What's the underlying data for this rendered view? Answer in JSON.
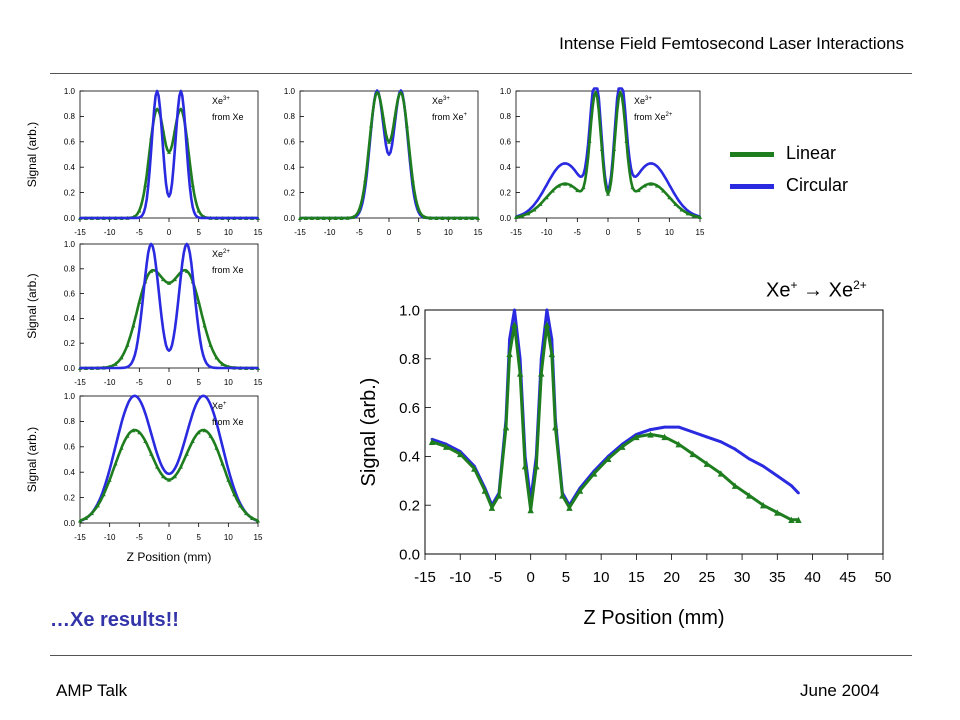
{
  "header": {
    "title": "Intense Field Femtosecond Laser Interactions"
  },
  "footer": {
    "left": "AMP Talk",
    "right": "June 2004"
  },
  "results_text": "…Xe results!!",
  "legend": [
    {
      "label": "Linear",
      "color": "#1e7d1e"
    },
    {
      "label": "Circular",
      "color": "#2a2ae0"
    }
  ],
  "big_title": {
    "a": "Xe",
    "a_sup": "+",
    "arrow": " → Xe",
    "b_sup": "2+"
  },
  "chart_data": [
    {
      "id": "xe3-from-xe",
      "type": "line",
      "label_top": "Xe",
      "label_sup": "3+",
      "label_bottom": "from Xe",
      "ylabel": "Signal (arb.)",
      "xlabel": "",
      "xlim": [
        -15,
        15
      ],
      "ylim": [
        0,
        1.0
      ],
      "xticks": [
        -15,
        -10,
        -5,
        0,
        5,
        10,
        15
      ],
      "yticks": [
        0.0,
        0.2,
        0.4,
        0.6,
        0.8,
        1.0
      ],
      "series": [
        {
          "color": "#1e7d1e",
          "peaks": [
            [
              -2,
              0.85,
              1.3
            ],
            [
              2,
              0.85,
              1.3
            ]
          ],
          "base": 0.0
        },
        {
          "color": "#2a2ae0",
          "peaks": [
            [
              -2,
              1.0,
              0.9
            ],
            [
              2,
              1.0,
              0.9
            ]
          ],
          "base": 0.0
        }
      ]
    },
    {
      "id": "xe3-from-xe1",
      "type": "line",
      "label_top": "Xe",
      "label_sup": "3+",
      "label_bottom": "from Xe",
      "label_bottom_sup": "+",
      "ylabel": "",
      "xlabel": "",
      "xlim": [
        -15,
        15
      ],
      "ylim": [
        0,
        1.0
      ],
      "xticks": [
        -15,
        -10,
        -5,
        0,
        5,
        10,
        15
      ],
      "yticks": [
        0.0,
        0.2,
        0.4,
        0.6,
        0.8,
        1.0
      ],
      "series": [
        {
          "color": "#2a2ae0",
          "peaks": [
            [
              -2,
              1.0,
              1.2
            ],
            [
              2,
              1.0,
              1.2
            ]
          ],
          "base": 0.0
        },
        {
          "color": "#1e7d1e",
          "peaks": [
            [
              -2,
              0.98,
              1.3
            ],
            [
              2,
              0.98,
              1.3
            ]
          ],
          "base": 0.0
        }
      ]
    },
    {
      "id": "xe3-from-xe2",
      "type": "line",
      "label_top": "Xe",
      "label_sup": "3+",
      "label_bottom": "from Xe",
      "label_bottom_sup": "2+",
      "ylabel": "",
      "xlabel": "",
      "xlim": [
        -15,
        15
      ],
      "ylim": [
        0,
        1.0
      ],
      "xticks": [
        -15,
        -10,
        -5,
        0,
        5,
        10,
        15
      ],
      "yticks": [
        0.0,
        0.2,
        0.4,
        0.6,
        0.8,
        1.0
      ],
      "series": [
        {
          "color": "#2a2ae0",
          "peaks": [
            [
              -2,
              1.0,
              0.9
            ],
            [
              2,
              1.0,
              0.9
            ],
            [
              -7,
              0.43,
              3.0
            ],
            [
              7,
              0.43,
              3.0
            ]
          ],
          "base": 0.0
        },
        {
          "color": "#1e7d1e",
          "peaks": [
            [
              -2,
              0.92,
              0.9
            ],
            [
              2,
              0.92,
              0.9
            ],
            [
              -7,
              0.27,
              3.0
            ],
            [
              7,
              0.27,
              3.0
            ]
          ],
          "base": 0.0
        }
      ]
    },
    {
      "id": "xe2-from-xe",
      "type": "line",
      "label_top": "Xe",
      "label_sup": "2+",
      "label_bottom": "from Xe",
      "ylabel": "Signal (arb.)",
      "xlabel": "",
      "xlim": [
        -15,
        15
      ],
      "ylim": [
        0,
        1.0
      ],
      "xticks": [
        -15,
        -10,
        -5,
        0,
        5,
        10,
        15
      ],
      "yticks": [
        0.0,
        0.2,
        0.4,
        0.6,
        0.8,
        1.0
      ],
      "series": [
        {
          "color": "#1e7d1e",
          "peaks": [
            [
              -3,
              0.75,
              2.4
            ],
            [
              3,
              0.75,
              2.4
            ]
          ],
          "base": 0.0
        },
        {
          "color": "#2a2ae0",
          "peaks": [
            [
              -3,
              1.0,
              1.3
            ],
            [
              3,
              1.0,
              1.3
            ]
          ],
          "base": 0.0
        }
      ]
    },
    {
      "id": "xe1-from-xe",
      "type": "line",
      "label_top": "Xe",
      "label_sup": "+",
      "label_bottom": "from Xe",
      "ylabel": "Signal (arb.)",
      "xlabel": "Z Position (mm)",
      "xlim": [
        -15,
        15
      ],
      "ylim": [
        0,
        1.0
      ],
      "xticks": [
        -15,
        -10,
        -5,
        0,
        5,
        10,
        15
      ],
      "yticks": [
        0.0,
        0.2,
        0.4,
        0.6,
        0.8,
        1.0
      ],
      "series": [
        {
          "color": "#2a2ae0",
          "peaks": [
            [
              -5.8,
              1.0,
              3.2
            ],
            [
              5.8,
              1.0,
              3.2
            ]
          ],
          "base": 0.0
        },
        {
          "color": "#1e7d1e",
          "peaks": [
            [
              -5.8,
              0.73,
              3.4
            ],
            [
              5.8,
              0.73,
              3.4
            ]
          ],
          "base": 0.0
        }
      ]
    },
    {
      "id": "xe1-to-xe2-large",
      "type": "line",
      "ylabel": "Signal (arb.)",
      "xlabel": "Z Position (mm)",
      "xlim": [
        -15,
        50
      ],
      "ylim": [
        0,
        1.0
      ],
      "xticks": [
        -15,
        -10,
        -5,
        0,
        5,
        10,
        15,
        20,
        25,
        30,
        35,
        40,
        45,
        50
      ],
      "yticks": [
        0.0,
        0.2,
        0.4,
        0.6,
        0.8,
        1.0
      ],
      "series": [
        {
          "color": "#2a2ae0",
          "x": [
            -14,
            -12,
            -10,
            -8,
            -6.5,
            -5.5,
            -4.5,
            -3.5,
            -3,
            -2.3,
            -1.5,
            -0.8,
            0,
            0.8,
            1.5,
            2.3,
            3,
            3.5,
            4.5,
            5.5,
            7,
            9,
            11,
            13,
            15,
            17,
            19,
            21,
            23,
            25,
            27,
            29,
            31,
            33,
            35,
            37,
            38
          ],
          "y": [
            0.47,
            0.45,
            0.42,
            0.36,
            0.27,
            0.2,
            0.25,
            0.55,
            0.88,
            1.0,
            0.8,
            0.4,
            0.22,
            0.4,
            0.8,
            1.0,
            0.88,
            0.55,
            0.25,
            0.2,
            0.27,
            0.34,
            0.4,
            0.45,
            0.49,
            0.51,
            0.52,
            0.52,
            0.5,
            0.48,
            0.46,
            0.43,
            0.39,
            0.36,
            0.32,
            0.28,
            0.25
          ]
        },
        {
          "color": "#1e7d1e",
          "x": [
            -14,
            -12,
            -10,
            -8,
            -6.5,
            -5.5,
            -4.5,
            -3.5,
            -3,
            -2.3,
            -1.5,
            -0.8,
            0,
            0.8,
            1.5,
            2.3,
            3,
            3.5,
            4.5,
            5.5,
            7,
            9,
            11,
            13,
            15,
            17,
            19,
            21,
            23,
            25,
            27,
            29,
            31,
            33,
            35,
            37,
            38
          ],
          "y": [
            0.46,
            0.44,
            0.41,
            0.35,
            0.26,
            0.19,
            0.24,
            0.52,
            0.82,
            0.94,
            0.74,
            0.36,
            0.18,
            0.36,
            0.74,
            0.94,
            0.82,
            0.52,
            0.24,
            0.19,
            0.26,
            0.33,
            0.39,
            0.44,
            0.48,
            0.49,
            0.48,
            0.45,
            0.41,
            0.37,
            0.33,
            0.28,
            0.24,
            0.2,
            0.17,
            0.14,
            0.14
          ]
        }
      ]
    }
  ]
}
